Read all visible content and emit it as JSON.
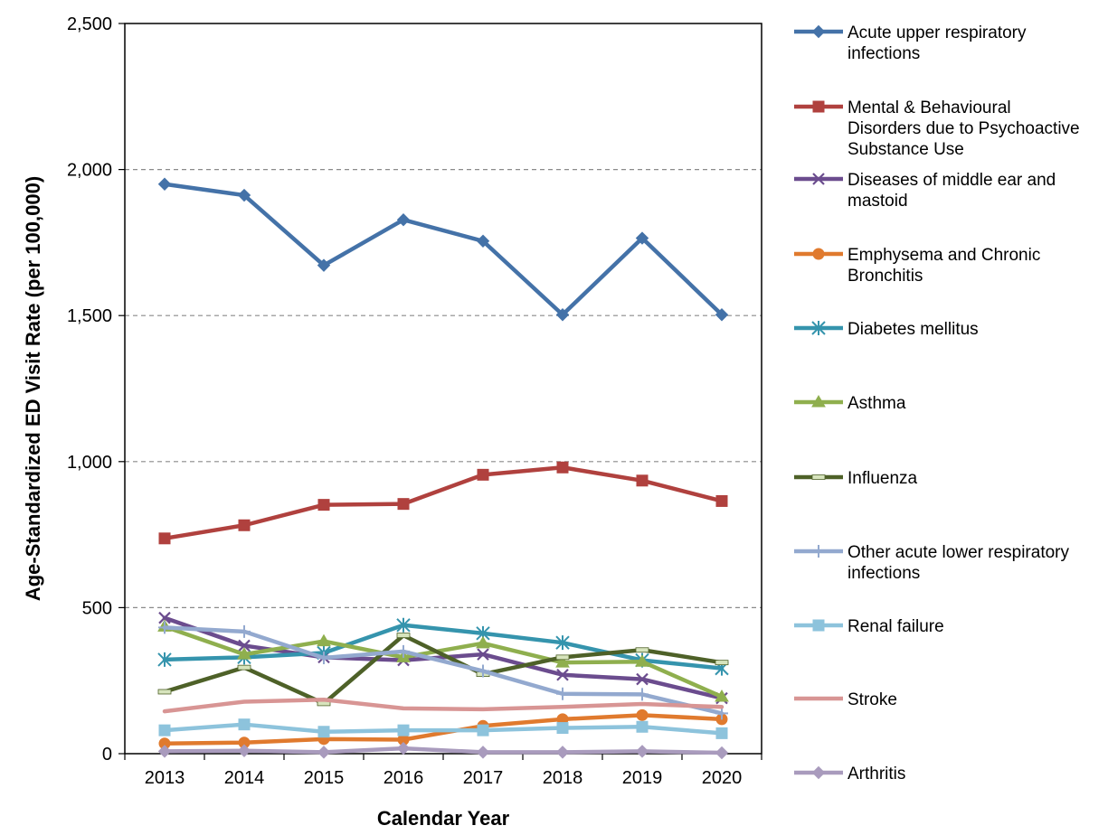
{
  "chart_data": {
    "type": "line",
    "title": "",
    "xlabel": "Calendar Year",
    "ylabel": "Age-Standardized ED Visit Rate (per 100,000)",
    "ylim": [
      0,
      2500
    ],
    "y_ticks": [
      "0",
      "500",
      "1,000",
      "1,500",
      "2,000",
      "2,500"
    ],
    "y_tick_values": [
      0,
      500,
      1000,
      1500,
      2000,
      2500
    ],
    "categories": [
      "2013",
      "2014",
      "2015",
      "2016",
      "2017",
      "2018",
      "2019",
      "2020"
    ],
    "grid": "horizontal dashed",
    "legend_position": "right",
    "series": [
      {
        "name": "Acute upper respiratory infections",
        "color": "#4472a8",
        "marker": "diamond",
        "values": [
          1950,
          1912,
          1672,
          1828,
          1755,
          1503,
          1765,
          1503
        ]
      },
      {
        "name": "Mental & Behavioural Disorders due to Psychoactive Substance Use",
        "color": "#b0413e",
        "marker": "square",
        "values": [
          737,
          782,
          852,
          855,
          955,
          980,
          935,
          865
        ]
      },
      {
        "name": "Diseases of middle ear and mastoid",
        "color": "#6b4c8e",
        "marker": "x",
        "values": [
          465,
          370,
          330,
          320,
          340,
          270,
          255,
          190
        ]
      },
      {
        "name": "Emphysema and Chronic Bronchitis",
        "color": "#e07a2e",
        "marker": "circle",
        "values": [
          35,
          38,
          50,
          48,
          95,
          118,
          132,
          118
        ]
      },
      {
        "name": "Diabetes mellitus",
        "color": "#3594ad",
        "marker": "asterisk",
        "values": [
          322,
          330,
          345,
          440,
          412,
          380,
          320,
          292
        ]
      },
      {
        "name": "Asthma",
        "color": "#8faf4e",
        "marker": "triangle",
        "values": [
          435,
          340,
          385,
          330,
          378,
          312,
          315,
          195
        ]
      },
      {
        "name": "Influenza",
        "color": "#4e6128",
        "marker": "dash",
        "values": [
          212,
          295,
          172,
          405,
          272,
          330,
          355,
          312
        ]
      },
      {
        "name": "Other acute lower respiratory infections",
        "color": "#93a9cf",
        "marker": "plus",
        "values": [
          432,
          418,
          328,
          350,
          283,
          205,
          203,
          138
        ]
      },
      {
        "name": "Renal failure",
        "color": "#8dc3dc",
        "marker": "square",
        "values": [
          80,
          100,
          75,
          80,
          80,
          88,
          92,
          70
        ]
      },
      {
        "name": "Stroke",
        "color": "#d89594",
        "marker": "none",
        "values": [
          145,
          178,
          185,
          155,
          152,
          160,
          170,
          160
        ]
      },
      {
        "name": "Arthritis",
        "color": "#a99bbd",
        "marker": "diamond",
        "values": [
          8,
          10,
          5,
          18,
          5,
          5,
          8,
          3
        ]
      }
    ],
    "legend_lines": [
      [
        "Acute upper respiratory",
        "infections"
      ],
      [
        "Mental & Behavioural",
        "Disorders due to Psychoactive",
        "Substance Use"
      ],
      [
        "Diseases of middle ear and",
        "mastoid"
      ],
      [
        "Emphysema and Chronic",
        "Bronchitis"
      ],
      [
        "Diabetes mellitus"
      ],
      [
        "Asthma"
      ],
      [
        "Influenza"
      ],
      [
        "Other acute lower respiratory",
        "infections"
      ],
      [
        "Renal failure"
      ],
      [
        "Stroke"
      ],
      [
        "Arthritis"
      ]
    ]
  }
}
